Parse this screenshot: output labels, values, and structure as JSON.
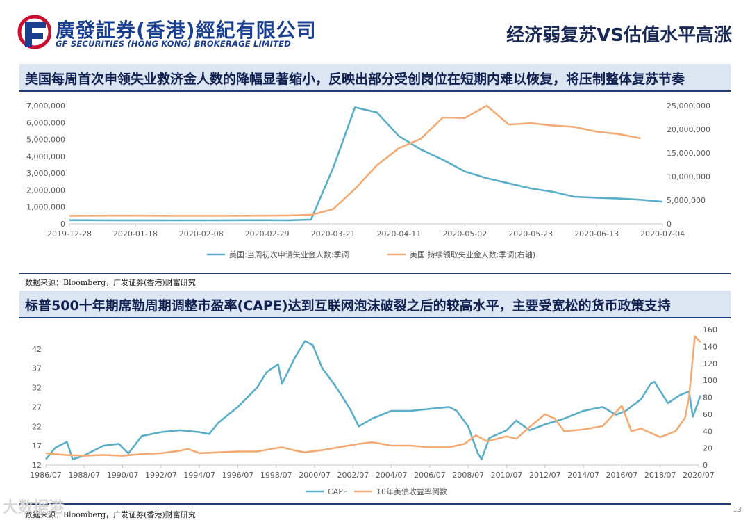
{
  "header": {
    "logo_cn": "廣發証券(香港)經紀有限公司",
    "logo_en": "GF SECURITIES (HONG KONG) BROKERAGE LIMITED",
    "page_title": "经济弱复苏VS估值水平高涨"
  },
  "colors": {
    "navy": "#1f3e79",
    "series_blue": "#5aaec8",
    "series_orange": "#f2ab74",
    "bar_bg": "#dce6f2"
  },
  "section1": {
    "title": "美国每周首次申领失业救济金人数的降幅显著缩小，反映出部分受创岗位在短期内难以恢复，将压制整体复苏节奏",
    "source": "数据来源：Bloomberg，广发证券(香港)财富研究"
  },
  "section2": {
    "title": "标普500十年期席勒周期调整市盈率(CAPE)达到互联网泡沫破裂之后的较高水平，主要受宽松的货币政策支持",
    "source": "数据来源：Bloomberg，广发证券(香港)财富研究"
  },
  "watermark": "大数据港",
  "page_number": "13",
  "chart_data": [
    {
      "type": "line",
      "title": "",
      "x_type": "weekly dates",
      "x_ticks": [
        "2019-12-28",
        "2020-01-18",
        "2020-02-08",
        "2020-02-29",
        "2020-03-21",
        "2020-04-11",
        "2020-05-02",
        "2020-05-23",
        "2020-06-13",
        "2020-07-04"
      ],
      "y_left": {
        "ticks": [
          "0",
          "1,000,000",
          "2,000,000",
          "3,000,000",
          "4,000,000",
          "5,000,000",
          "6,000,000",
          "7,000,000"
        ],
        "min": 0,
        "max": 7000000
      },
      "y_right": {
        "ticks": [
          "0",
          "5,000,000",
          "10,000,000",
          "15,000,000",
          "20,000,000",
          "25,000,000"
        ],
        "min": 0,
        "max": 25000000
      },
      "legend_position": "bottom",
      "series": [
        {
          "name": "美国:当周初次申请失业金人数:季调",
          "axis": "left",
          "color": "#5aaec8",
          "x": [
            "2019-12-28",
            "2020-01-04",
            "2020-01-11",
            "2020-01-18",
            "2020-01-25",
            "2020-02-01",
            "2020-02-08",
            "2020-02-15",
            "2020-02-22",
            "2020-02-29",
            "2020-03-07",
            "2020-03-14",
            "2020-03-21",
            "2020-03-28",
            "2020-04-04",
            "2020-04-11",
            "2020-04-18",
            "2020-04-25",
            "2020-05-02",
            "2020-05-09",
            "2020-05-16",
            "2020-05-23",
            "2020-05-30",
            "2020-06-06",
            "2020-06-13",
            "2020-06-20",
            "2020-06-27",
            "2020-07-04"
          ],
          "values": [
            220000,
            215000,
            212000,
            210000,
            208000,
            205000,
            205000,
            210000,
            215000,
            216000,
            210000,
            250000,
            3300000,
            6900000,
            6600000,
            5200000,
            4400000,
            3800000,
            3100000,
            2700000,
            2400000,
            2100000,
            1900000,
            1600000,
            1550000,
            1500000,
            1430000,
            1310000
          ]
        },
        {
          "name": "美国:持续领取失业金人数:季调(右轴)",
          "axis": "right",
          "color": "#f2ab74",
          "x": [
            "2019-12-28",
            "2020-01-04",
            "2020-01-11",
            "2020-01-18",
            "2020-01-25",
            "2020-02-01",
            "2020-02-08",
            "2020-02-15",
            "2020-02-22",
            "2020-02-29",
            "2020-03-07",
            "2020-03-14",
            "2020-03-21",
            "2020-03-28",
            "2020-04-04",
            "2020-04-11",
            "2020-04-18",
            "2020-04-25",
            "2020-05-02",
            "2020-05-09",
            "2020-05-16",
            "2020-05-23",
            "2020-05-30",
            "2020-06-06",
            "2020-06-13",
            "2020-06-20",
            "2020-06-27"
          ],
          "values": [
            1700000,
            1720000,
            1740000,
            1730000,
            1720000,
            1710000,
            1700000,
            1710000,
            1720000,
            1730000,
            1780000,
            1900000,
            3100000,
            7400000,
            12400000,
            16000000,
            18000000,
            22500000,
            22400000,
            25000000,
            21000000,
            21300000,
            20800000,
            20500000,
            19500000,
            19000000,
            18100000
          ]
        }
      ]
    },
    {
      "type": "line",
      "title": "",
      "x_type": "monthly",
      "x_ticks": [
        "1986/07",
        "1988/07",
        "1990/07",
        "1992/07",
        "1994/07",
        "1996/07",
        "1998/07",
        "2000/07",
        "2002/07",
        "2004/07",
        "2006/07",
        "2008/07",
        "2010/07",
        "2012/07",
        "2014/07",
        "2016/07",
        "2018/07",
        "2020/07"
      ],
      "y_left": {
        "ticks": [
          "12",
          "17",
          "22",
          "27",
          "32",
          "37",
          "42"
        ],
        "min": 12,
        "max": 47
      },
      "y_right": {
        "ticks": [
          "0",
          "20",
          "40",
          "60",
          "80",
          "100",
          "120",
          "140",
          "160"
        ],
        "min": 0,
        "max": 160
      },
      "legend_position": "bottom",
      "series": [
        {
          "name": "CAPE",
          "axis": "left",
          "color": "#5aaec8",
          "x": [
            1986.5,
            1987.0,
            1987.6,
            1987.9,
            1988.5,
            1989.5,
            1990.3,
            1990.8,
            1991.5,
            1992.5,
            1993.5,
            1994.5,
            1995.0,
            1995.5,
            1996.5,
            1997.5,
            1998.0,
            1998.6,
            1998.8,
            1999.5,
            2000.0,
            2000.4,
            2000.9,
            2001.5,
            2001.9,
            2002.4,
            2002.8,
            2003.5,
            2004.5,
            2005.5,
            2006.5,
            2007.5,
            2007.9,
            2008.5,
            2009.0,
            2009.2,
            2009.6,
            2010.5,
            2011.0,
            2011.7,
            2012.5,
            2013.5,
            2014.5,
            2015.5,
            2016.2,
            2016.7,
            2017.5,
            2018.0,
            2018.2,
            2018.9,
            2019.5,
            2020.0,
            2020.2,
            2020.6
          ],
          "values": [
            13.5,
            16.5,
            18.0,
            13.5,
            14.5,
            17.0,
            17.5,
            15.0,
            19.5,
            20.5,
            21.0,
            20.5,
            20.0,
            23.0,
            27.0,
            32.0,
            36.0,
            38.0,
            33.0,
            40.0,
            44.0,
            43.0,
            37.0,
            33.0,
            30.0,
            26.0,
            22.0,
            24.0,
            26.0,
            26.0,
            26.5,
            27.0,
            26.0,
            22.0,
            15.0,
            13.5,
            19.0,
            21.0,
            23.5,
            21.0,
            22.5,
            24.0,
            26.0,
            27.0,
            25.0,
            26.0,
            29.0,
            33.0,
            33.5,
            28.0,
            30.0,
            31.0,
            24.5,
            30.0
          ]
        },
        {
          "name": "10年美债收益率倒数",
          "axis": "right",
          "color": "#f2ab74",
          "x": [
            1986.5,
            1987.5,
            1988.5,
            1989.5,
            1990.5,
            1991.5,
            1992.5,
            1993.5,
            1993.9,
            1994.5,
            1995.5,
            1996.5,
            1997.5,
            1998.5,
            1998.8,
            1999.5,
            2000.0,
            2001.0,
            2002.0,
            2002.8,
            2003.5,
            2004.5,
            2005.5,
            2006.5,
            2007.5,
            2008.3,
            2008.9,
            2009.5,
            2010.5,
            2011.0,
            2011.7,
            2012.5,
            2013.0,
            2013.5,
            2014.5,
            2015.5,
            2016.5,
            2017.0,
            2017.5,
            2018.5,
            2019.3,
            2019.8,
            2020.0,
            2020.3,
            2020.6
          ],
          "values": [
            14,
            12,
            11,
            12,
            11,
            13,
            14,
            17,
            19,
            14,
            15,
            16,
            16,
            20,
            21,
            17,
            15,
            18,
            22,
            25,
            27,
            23,
            23,
            21,
            21,
            25,
            35,
            28,
            34,
            31,
            45,
            60,
            55,
            40,
            42,
            46,
            70,
            40,
            43,
            33,
            40,
            56,
            80,
            152,
            145
          ]
        }
      ]
    }
  ]
}
